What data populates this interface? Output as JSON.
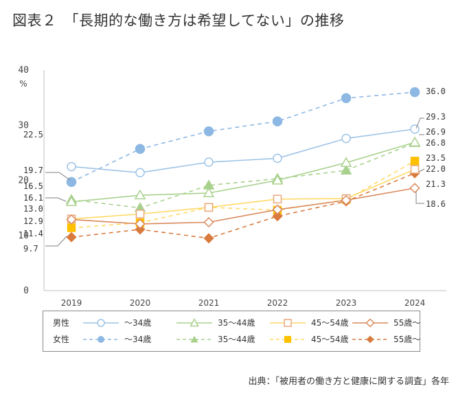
{
  "title": "図表２　「長期的な働き方は希望してない」の推移",
  "source": "出典：「被用者の働き方と健康に関する調査」各年",
  "legend": {
    "groups": [
      "男性",
      "女性"
    ],
    "ages": [
      "～34歳",
      "35～44歳",
      "45～54歳",
      "55歳～"
    ]
  },
  "colors": {
    "blue": "#9dc3e6",
    "blue_filled": "#8cb8e3",
    "green": "#a9d18e",
    "yellow": "#ffd966",
    "yellow_filled": "#ffc000",
    "orange": "#d9885a",
    "orange_filled": "#d97b3e",
    "axis": "#bfbfbf",
    "leader": "#7f7f7f"
  },
  "chart_data": {
    "type": "line",
    "title": "",
    "xlabel": "",
    "ylabel": "%",
    "ylim": [
      0,
      40
    ],
    "yticks": [
      "0",
      "10",
      "20",
      "30",
      "40"
    ],
    "x": [
      "2019",
      "2020",
      "2021",
      "2022",
      "2023",
      "2024"
    ],
    "grid": false,
    "legend_position": "bottom",
    "series": [
      {
        "name": "男性 ～34歳",
        "values": [
          22.5,
          21.4,
          23.3,
          24.0,
          27.6,
          29.3
        ],
        "color": "#9dc3e6",
        "dash": false,
        "marker": "circle-open"
      },
      {
        "name": "男性 35～44歳",
        "values": [
          16.1,
          17.3,
          17.7,
          20.0,
          23.2,
          26.9
        ],
        "color": "#a9d18e",
        "dash": false,
        "marker": "triangle-open"
      },
      {
        "name": "男性 45～54歳",
        "values": [
          13.0,
          13.9,
          15.1,
          16.6,
          16.7,
          22.0
        ],
        "color": "#e8a87c",
        "dash": false,
        "marker": "square-open"
      },
      {
        "name": "男性 55歳～",
        "values": [
          12.9,
          12.1,
          12.4,
          14.7,
          16.4,
          18.6
        ],
        "color": "#d9885a",
        "dash": false,
        "marker": "diamond-open"
      },
      {
        "name": "女性 ～34歳",
        "values": [
          19.7,
          25.7,
          28.9,
          30.7,
          34.9,
          36.0
        ],
        "color": "#8cb8e3",
        "dash": true,
        "marker": "circle-filled"
      },
      {
        "name": "女性 35～44歳",
        "values": [
          16.5,
          15.0,
          19.1,
          20.3,
          21.8,
          26.8
        ],
        "color": "#a9d18e",
        "dash": true,
        "marker": "triangle-filled"
      },
      {
        "name": "女性 45～54歳",
        "values": [
          11.4,
          12.3,
          15.1,
          14.6,
          16.5,
          23.5
        ],
        "color": "#ffc000",
        "dash": true,
        "marker": "square-filled"
      },
      {
        "name": "女性 55歳～",
        "values": [
          9.7,
          11.1,
          9.5,
          13.5,
          16.2,
          21.3
        ],
        "color": "#d97b3e",
        "dash": true,
        "marker": "diamond-filled"
      }
    ],
    "data_labels_2019": [
      "22.5",
      "19.7",
      "16.5",
      "16.1",
      "13.0",
      "12.9",
      "11.4",
      "9.7"
    ],
    "data_labels_2024": [
      "36.0",
      "29.3",
      "26.9",
      "26.8",
      "23.5",
      "22.0",
      "21.3",
      "18.6"
    ]
  }
}
